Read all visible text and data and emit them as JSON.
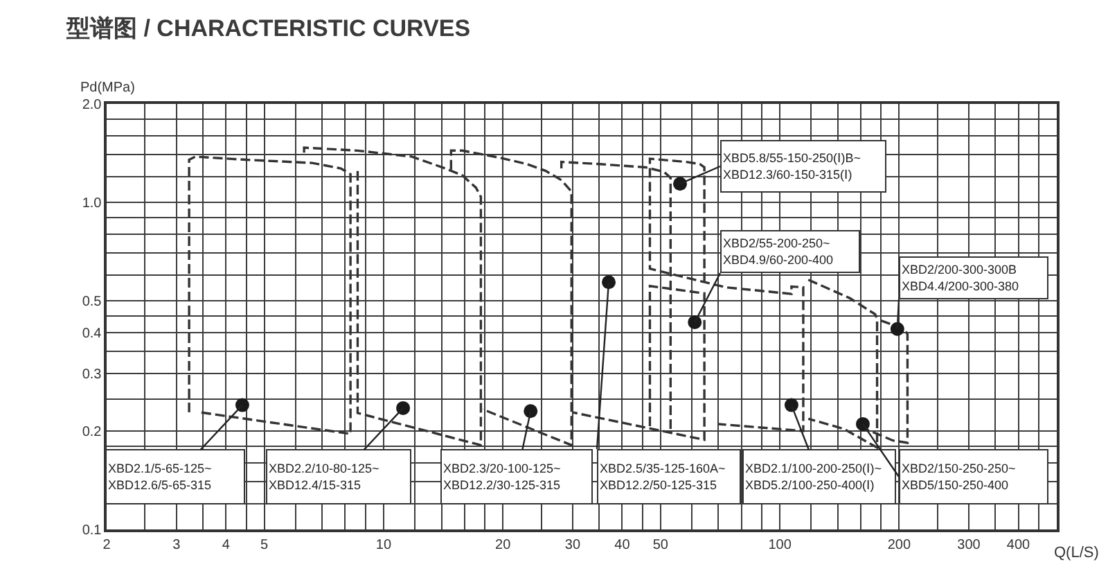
{
  "chart_data": {
    "type": "line",
    "title": "型谱图 / CHARACTERISTIC CURVES",
    "xlabel": "Q(L/S)",
    "ylabel": "Pd(MPa)",
    "log": "xy",
    "grid": true,
    "line_style": "dashed",
    "xlim": [
      2,
      500
    ],
    "ylim": [
      0.1,
      2.0
    ],
    "xticks": [
      2,
      {
        "value": 2.5,
        "label": null
      },
      3,
      {
        "value": 3.5,
        "label": null
      },
      4,
      {
        "value": 4.5,
        "label": null
      },
      5,
      {
        "value": 6,
        "label": null
      },
      {
        "value": 7,
        "label": null
      },
      {
        "value": 8,
        "label": null
      },
      {
        "value": 9,
        "label": null
      },
      10,
      {
        "value": 12,
        "label": null
      },
      {
        "value": 14,
        "label": null
      },
      {
        "value": 16,
        "label": null
      },
      {
        "value": 18,
        "label": null
      },
      20,
      {
        "value": 25,
        "label": null
      },
      30,
      {
        "value": 35,
        "label": null
      },
      40,
      {
        "value": 45,
        "label": null
      },
      50,
      {
        "value": 60,
        "label": null
      },
      {
        "value": 70,
        "label": null
      },
      {
        "value": 80,
        "label": null
      },
      {
        "value": 90,
        "label": null
      },
      100,
      {
        "value": 120,
        "label": null
      },
      {
        "value": 140,
        "label": null
      },
      {
        "value": 160,
        "label": null
      },
      {
        "value": 180,
        "label": null
      },
      200,
      {
        "value": 250,
        "label": null
      },
      300,
      {
        "value": 350,
        "label": null
      },
      400,
      {
        "value": 450,
        "label": null
      }
    ],
    "yticks": [
      0.1,
      {
        "value": 0.12,
        "label": null
      },
      {
        "value": 0.14,
        "label": null
      },
      {
        "value": 0.16,
        "label": null
      },
      {
        "value": 0.18,
        "label": null
      },
      0.2,
      {
        "value": 0.25,
        "label": null
      },
      0.3,
      {
        "value": 0.35,
        "label": null
      },
      0.4,
      {
        "value": 0.45,
        "label": null
      },
      0.5,
      {
        "value": 0.6,
        "label": null
      },
      {
        "value": 0.7,
        "label": null
      },
      {
        "value": 0.8,
        "label": null
      },
      {
        "value": 0.9,
        "label": null
      },
      {
        "value": 1,
        "label": "1.0"
      },
      {
        "value": 1.2,
        "label": null
      },
      {
        "value": 1.4,
        "label": null
      },
      {
        "value": 1.6,
        "label": null
      },
      {
        "value": 1.8,
        "label": null
      },
      {
        "value": 2,
        "label": "2.0"
      }
    ],
    "series": [
      {
        "color": "#333333",
        "x": [
          3.23,
          3.23,
          3.35,
          4.5,
          6.6,
          7.8,
          8.25,
          8.25,
          3.45
        ],
        "values": [
          0.228,
          1.35,
          1.38,
          1.35,
          1.32,
          1.27,
          1.22,
          0.196,
          0.228
        ]
      },
      {
        "color": "#333333",
        "x": [
          6.3,
          6.3,
          8.6,
          11.8,
          14.3,
          15.8,
          17.1,
          17.6,
          17.6,
          8.6,
          8.6
        ],
        "values": [
          1.42,
          1.47,
          1.44,
          1.38,
          1.27,
          1.21,
          1.11,
          1.04,
          0.181,
          0.227,
          1.26
        ]
      },
      {
        "color": "#333333",
        "x": [
          14.8,
          14.8,
          15.8,
          19.6,
          23.0,
          25.6,
          28.1,
          29.8,
          29.8,
          17.8
        ],
        "values": [
          1.26,
          1.44,
          1.44,
          1.37,
          1.31,
          1.25,
          1.17,
          1.08,
          0.181,
          0.233
        ]
      },
      {
        "color": "#333333",
        "x": [
          28.1,
          28.1,
          35,
          45.9,
          51,
          53,
          53
        ],
        "values": [
          1.27,
          1.33,
          1.31,
          1.28,
          1.24,
          1.19,
          0.2
        ]
      },
      {
        "color": "#333333",
        "x": [
          64.5,
          64.5,
          62.8,
          58,
          47,
          47,
          73,
          107,
          107,
          114.6,
          114.6,
          70
        ],
        "values": [
          0.57,
          1.28,
          1.31,
          1.33,
          1.36,
          0.627,
          0.55,
          0.525,
          0.553,
          0.55,
          0.2,
          0.21
        ]
      },
      {
        "color": "#333333",
        "x": [
          47,
          47,
          64.5,
          64.5,
          30
        ],
        "values": [
          0.207,
          0.555,
          0.527,
          0.188,
          0.228
        ]
      },
      {
        "color": "#333333",
        "x": [
          118,
          150,
          174,
          176,
          176,
          145,
          118
        ],
        "values": [
          0.58,
          0.51,
          0.455,
          0.44,
          0.178,
          0.203,
          0.218
        ]
      },
      {
        "color": "#333333",
        "x": [
          180,
          195,
          206,
          210,
          210,
          193,
          158
        ],
        "values": [
          0.435,
          0.42,
          0.41,
          0.395,
          0.184,
          0.187,
          0.207
        ]
      },
      {
        "type": "scatter",
        "marker": "circle",
        "color": "#1a1a1a",
        "x": [
          4.4,
          11.2,
          23.5,
          37,
          56,
          61,
          107,
          162,
          198
        ],
        "values": [
          0.24,
          0.235,
          0.23,
          0.57,
          1.14,
          0.43,
          0.24,
          0.21,
          0.41
        ]
      }
    ],
    "annotations": [
      {
        "text": "XBD2.1/5-65-125~\nXBD12.6/5-65-315",
        "x": 4.4,
        "y": 0.24
      },
      {
        "text": "XBD2.2/10-80-125~\nXBD12.4/15-315",
        "x": 11.2,
        "y": 0.235
      },
      {
        "text": "XBD2.3/20-100-125~\nXBD12.2/30-125-315",
        "x": 23.5,
        "y": 0.23
      },
      {
        "text": "XBD2.5/35-125-160A~\nXBD12.2/50-125-315",
        "x": 37,
        "y": 0.57
      },
      {
        "text": "XBD5.8/55-150-250(Ⅰ)B~\nXBD12.3/60-150-315(Ⅰ)",
        "x": 56,
        "y": 1.14
      },
      {
        "text": "XBD2/55-200-250~\nXBD4.9/60-200-400",
        "x": 61,
        "y": 0.43
      },
      {
        "text": "XBD2.1/100-200-250(Ⅰ)~\nXBD5.2/100-250-400(Ⅰ)",
        "x": 107,
        "y": 0.24
      },
      {
        "text": "XBD2/150-250-250~\nXBD5/150-250-400",
        "x": 162,
        "y": 0.21
      },
      {
        "text": "XBD2/200-300-300B\nXBD4.4/200-300-380",
        "x": 198,
        "y": 0.41
      }
    ]
  }
}
